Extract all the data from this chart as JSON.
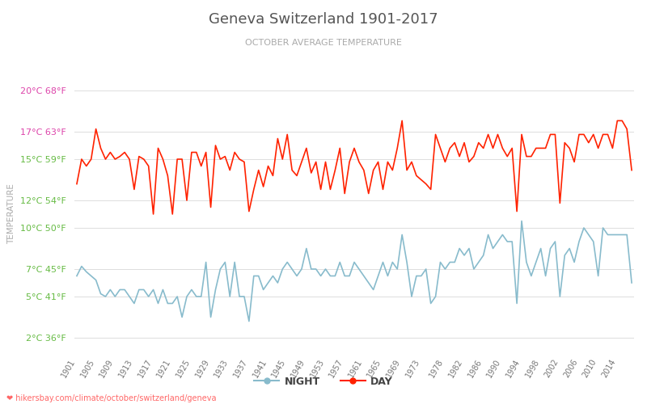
{
  "title": "Geneva Switzerland 1901-2017",
  "subtitle": "OCTOBER AVERAGE TEMPERATURE",
  "ylabel": "TEMPERATURE",
  "ylabel_color": "#aaaaaa",
  "title_color": "#555555",
  "subtitle_color": "#aaaaaa",
  "background_color": "#ffffff",
  "grid_color": "#dddddd",
  "years": [
    1901,
    1902,
    1903,
    1904,
    1905,
    1906,
    1907,
    1908,
    1909,
    1910,
    1911,
    1912,
    1913,
    1914,
    1915,
    1916,
    1917,
    1918,
    1919,
    1920,
    1921,
    1922,
    1923,
    1924,
    1925,
    1926,
    1927,
    1928,
    1929,
    1930,
    1931,
    1932,
    1933,
    1934,
    1935,
    1936,
    1937,
    1938,
    1939,
    1940,
    1941,
    1942,
    1943,
    1944,
    1945,
    1946,
    1947,
    1948,
    1949,
    1950,
    1951,
    1952,
    1953,
    1954,
    1955,
    1956,
    1957,
    1958,
    1959,
    1960,
    1961,
    1962,
    1963,
    1964,
    1965,
    1966,
    1967,
    1968,
    1969,
    1970,
    1971,
    1972,
    1973,
    1974,
    1975,
    1976,
    1977,
    1978,
    1979,
    1980,
    1981,
    1982,
    1983,
    1984,
    1985,
    1986,
    1987,
    1988,
    1989,
    1990,
    1991,
    1992,
    1993,
    1994,
    1995,
    1996,
    1997,
    1998,
    1999,
    2000,
    2001,
    2002,
    2003,
    2004,
    2005,
    2006,
    2007,
    2008,
    2009,
    2010,
    2011,
    2012,
    2013,
    2014,
    2015,
    2016,
    2017
  ],
  "day_temps": [
    13.2,
    15.0,
    14.5,
    15.0,
    17.2,
    15.8,
    15.0,
    15.5,
    15.0,
    15.2,
    15.5,
    15.0,
    12.8,
    15.2,
    15.0,
    14.5,
    11.0,
    15.8,
    15.0,
    13.8,
    11.0,
    15.0,
    15.0,
    12.0,
    15.5,
    15.5,
    14.5,
    15.5,
    11.5,
    16.0,
    15.0,
    15.2,
    14.2,
    15.5,
    15.0,
    14.8,
    11.2,
    12.8,
    14.2,
    13.0,
    14.5,
    13.8,
    16.5,
    15.0,
    16.8,
    14.2,
    13.8,
    14.8,
    15.8,
    14.0,
    14.8,
    12.8,
    14.8,
    12.8,
    14.2,
    15.8,
    12.5,
    14.8,
    15.8,
    14.8,
    14.2,
    12.5,
    14.2,
    14.8,
    12.8,
    14.8,
    14.2,
    15.8,
    17.8,
    14.2,
    14.8,
    13.8,
    13.5,
    13.2,
    12.8,
    16.8,
    15.8,
    14.8,
    15.8,
    16.2,
    15.2,
    16.2,
    14.8,
    15.2,
    16.2,
    15.8,
    16.8,
    15.8,
    16.8,
    15.8,
    15.2,
    15.8,
    11.2,
    16.8,
    15.2,
    15.2,
    15.8,
    15.8,
    15.8,
    16.8,
    16.8,
    11.8,
    16.2,
    15.8,
    14.8,
    16.8,
    16.8,
    16.2,
    16.8,
    15.8,
    16.8,
    16.8,
    15.8,
    17.8,
    17.8,
    17.2,
    14.2
  ],
  "night_temps": [
    6.5,
    7.2,
    6.8,
    6.5,
    6.2,
    5.2,
    5.0,
    5.5,
    5.0,
    5.5,
    5.5,
    5.0,
    4.5,
    5.5,
    5.5,
    5.0,
    5.5,
    4.5,
    5.5,
    4.5,
    4.5,
    5.0,
    3.5,
    5.0,
    5.5,
    5.0,
    5.0,
    7.5,
    3.5,
    5.5,
    7.0,
    7.5,
    5.0,
    7.5,
    5.0,
    5.0,
    3.2,
    6.5,
    6.5,
    5.5,
    6.0,
    6.5,
    6.0,
    7.0,
    7.5,
    7.0,
    6.5,
    7.0,
    8.5,
    7.0,
    7.0,
    6.5,
    7.0,
    6.5,
    6.5,
    7.5,
    6.5,
    6.5,
    7.5,
    7.0,
    6.5,
    6.0,
    5.5,
    6.5,
    7.5,
    6.5,
    7.5,
    7.0,
    9.5,
    7.5,
    5.0,
    6.5,
    6.5,
    7.0,
    4.5,
    5.0,
    7.5,
    7.0,
    7.5,
    7.5,
    8.5,
    8.0,
    8.5,
    7.0,
    7.5,
    8.0,
    9.5,
    8.5,
    9.0,
    9.5,
    9.0,
    9.0,
    4.5,
    10.5,
    7.5,
    6.5,
    7.5,
    8.5,
    6.5,
    8.5,
    9.0,
    5.0,
    8.0,
    8.5,
    7.5,
    9.0,
    10.0,
    9.5,
    9.0,
    6.5,
    10.0,
    9.5,
    9.5,
    9.5,
    9.5,
    9.5,
    6.0
  ],
  "day_color": "#ff2200",
  "night_color": "#88bbcc",
  "day_linewidth": 1.2,
  "night_linewidth": 1.2,
  "yticks_celsius": [
    2,
    5,
    7,
    10,
    12,
    15,
    17,
    20
  ],
  "yticks_fahrenheit": [
    36,
    41,
    45,
    50,
    54,
    59,
    63,
    68
  ],
  "ytick_colors": [
    "#66bb44",
    "#66bb44",
    "#66bb44",
    "#66bb44",
    "#66bb44",
    "#66bb44",
    "#dd44aa",
    "#dd44aa"
  ],
  "xtick_years": [
    1901,
    1905,
    1909,
    1913,
    1917,
    1921,
    1925,
    1929,
    1933,
    1937,
    1941,
    1945,
    1949,
    1953,
    1957,
    1961,
    1965,
    1969,
    1973,
    1978,
    1982,
    1986,
    1990,
    1994,
    1998,
    2002,
    2006,
    2010,
    2014
  ],
  "footer_text": "hikersbay.com/climate/october/switzerland/geneva",
  "ylim": [
    1,
    21
  ],
  "legend_labels": [
    "NIGHT",
    "DAY"
  ]
}
